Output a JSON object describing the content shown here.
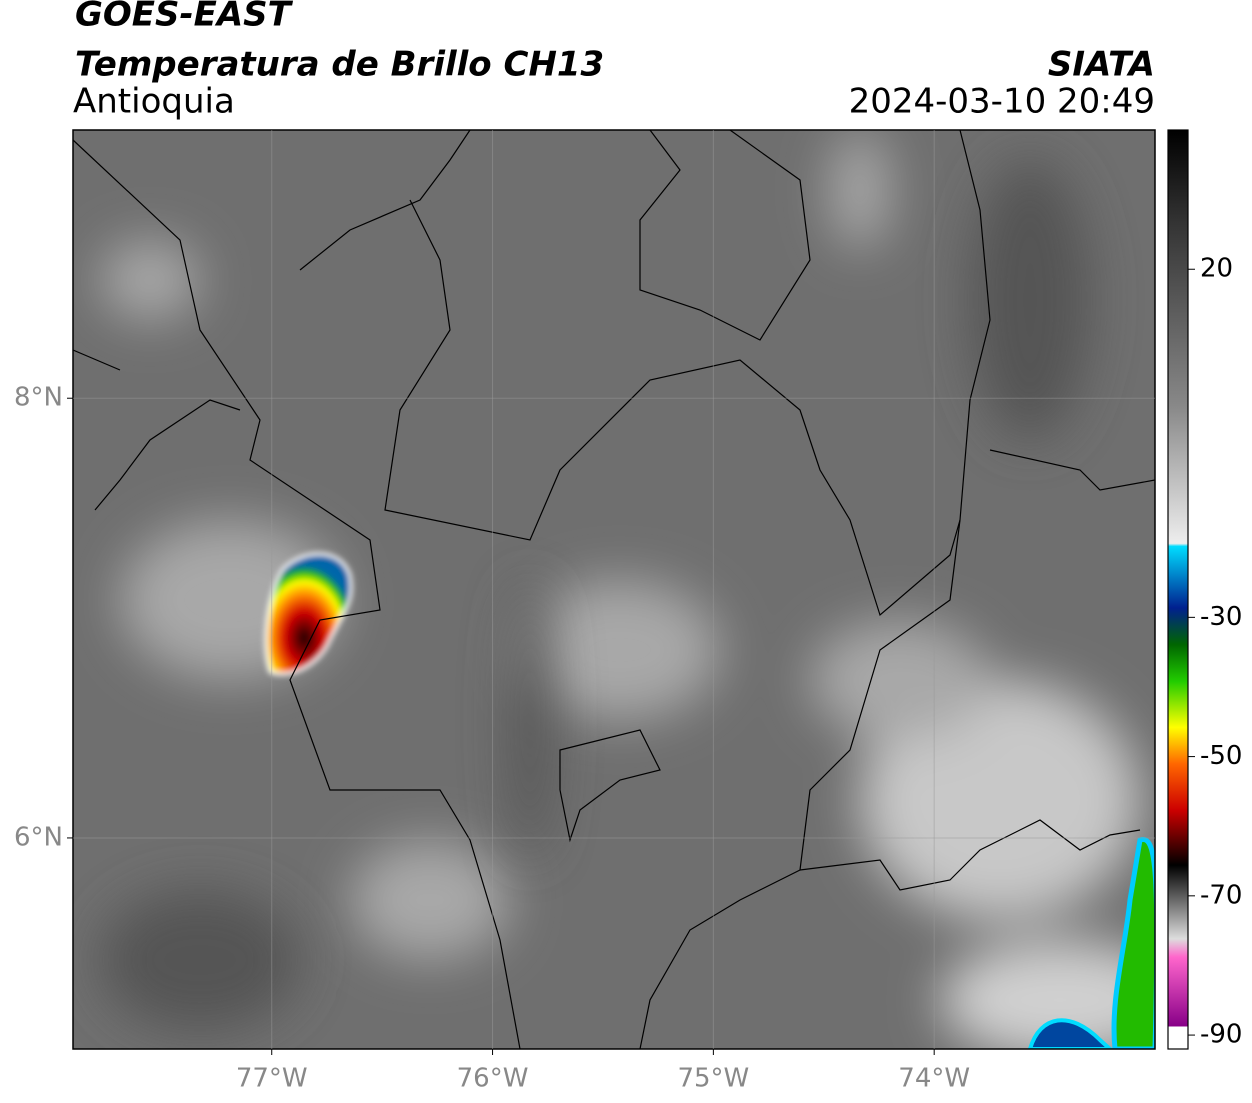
{
  "header": {
    "satellite": "GOES-EAST",
    "product": "Temperatura de Brillo CH13",
    "region": "Antioquia",
    "source": "SIATA",
    "timestamp": "2024-03-10 20:49"
  },
  "map": {
    "xlim": [
      -77.9,
      -73.0
    ],
    "ylim": [
      5.04,
      9.22
    ],
    "xticks": [
      {
        "value": -77,
        "label": "77°W"
      },
      {
        "value": -76,
        "label": "76°W"
      },
      {
        "value": -75,
        "label": "75°W"
      },
      {
        "value": -74,
        "label": "74°W"
      }
    ],
    "yticks": [
      {
        "value": 8,
        "label": "8°N"
      },
      {
        "value": 6,
        "label": "6°N"
      }
    ],
    "grid": true
  },
  "colorbar": {
    "lim": [
      -92,
      40
    ],
    "ticks": [
      20,
      -30,
      -50,
      -70,
      -90
    ]
  }
}
